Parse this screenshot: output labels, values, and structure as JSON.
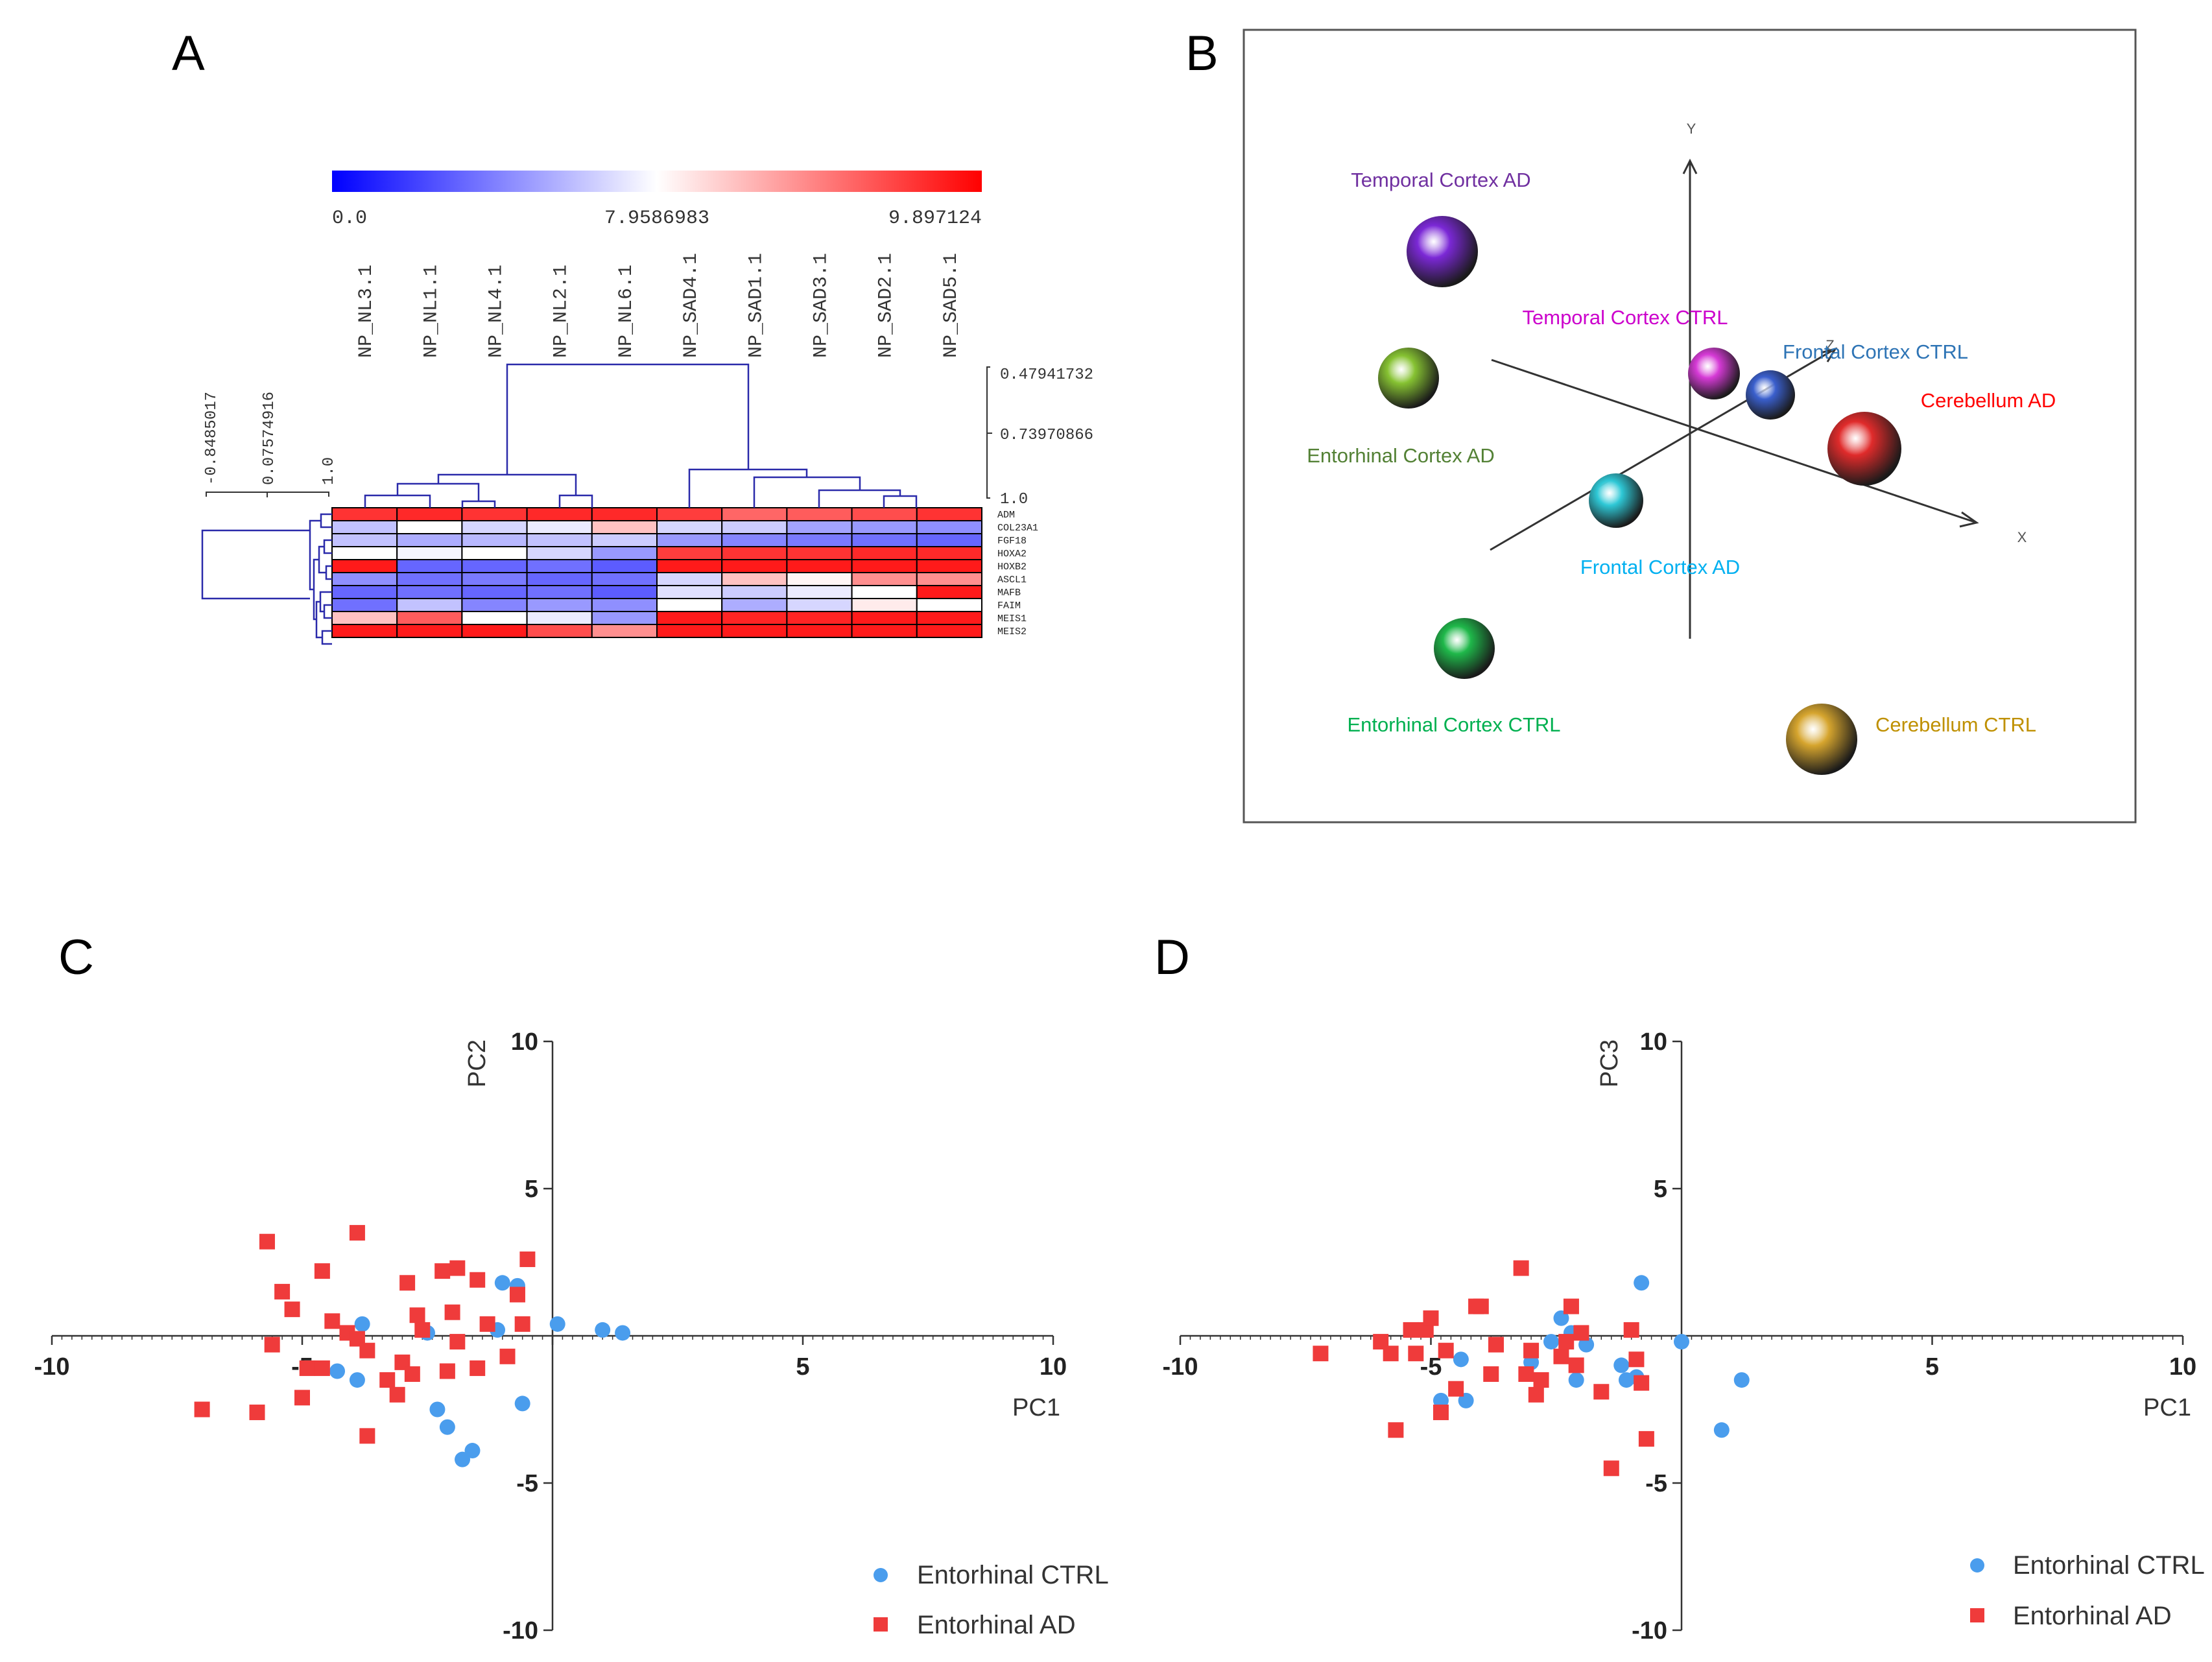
{
  "panel_labels": {
    "a": "A",
    "b": "B",
    "c": "C",
    "d": "D"
  },
  "chart_data": [
    {
      "panel": "A",
      "type": "heatmap",
      "title": "",
      "color_scale": {
        "colors": [
          "#0000ff",
          "#ffffff",
          "#ff0000"
        ],
        "min_label": "0.0",
        "mid_label": "7.9586983",
        "max_label": "9.897124"
      },
      "columns": [
        "NP_NL3.1",
        "NP_NL1.1",
        "NP_NL4.1",
        "NP_NL2.1",
        "NP_NL6.1",
        "NP_SAD4.1",
        "NP_SAD1.1",
        "NP_SAD3.1",
        "NP_SAD2.1",
        "NP_SAD5.1"
      ],
      "rows": [
        "ADM",
        "COL23A1",
        "FGF18",
        "HOXA2",
        "HOXB2",
        "ASCL1",
        "MAFB",
        "FAIM",
        "MEIS1",
        "MEIS2"
      ],
      "values": [
        [
          0.9,
          0.92,
          0.9,
          0.92,
          0.92,
          0.88,
          0.8,
          0.82,
          0.85,
          0.9
        ],
        [
          0.38,
          0.5,
          0.42,
          0.46,
          0.62,
          0.42,
          0.4,
          0.32,
          0.3,
          0.28
        ],
        [
          0.38,
          0.34,
          0.36,
          0.38,
          0.4,
          0.3,
          0.26,
          0.24,
          0.22,
          0.2
        ],
        [
          0.5,
          0.48,
          0.5,
          0.42,
          0.3,
          0.88,
          0.9,
          0.9,
          0.92,
          0.92
        ],
        [
          0.95,
          0.2,
          0.2,
          0.22,
          0.18,
          0.95,
          0.95,
          0.95,
          0.95,
          0.95
        ],
        [
          0.28,
          0.22,
          0.24,
          0.2,
          0.22,
          0.42,
          0.62,
          0.52,
          0.72,
          0.72
        ],
        [
          0.2,
          0.22,
          0.2,
          0.22,
          0.18,
          0.44,
          0.4,
          0.46,
          0.5,
          0.95
        ],
        [
          0.22,
          0.38,
          0.26,
          0.3,
          0.28,
          0.5,
          0.34,
          0.42,
          0.54,
          0.5
        ],
        [
          0.62,
          0.82,
          0.5,
          0.46,
          0.3,
          0.95,
          0.93,
          0.93,
          0.95,
          0.95
        ],
        [
          0.95,
          0.95,
          0.95,
          0.85,
          0.72,
          0.95,
          0.95,
          0.95,
          0.95,
          0.95
        ]
      ],
      "column_dendrogram_scale": [
        "0.47941732",
        "0.73970866",
        "1.0"
      ],
      "row_dendrogram_scale": [
        "-0.8485017",
        "0.07574916",
        "1.0"
      ]
    },
    {
      "panel": "B",
      "type": "scatter",
      "title": "",
      "axes": [
        "X",
        "Y",
        "Z"
      ],
      "groups": [
        {
          "name": "Temporal Cortex AD",
          "color": "#7b28d6",
          "label_color": "#7030a0"
        },
        {
          "name": "Entorhinal Cortex AD",
          "color": "#86c232",
          "label_color": "#538135"
        },
        {
          "name": "Temporal Cortex CTRL",
          "color": "#d63ad6",
          "label_color": "#cc00cc"
        },
        {
          "name": "Frontal Cortex CTRL",
          "color": "#3a5fcd",
          "label_color": "#2e74b5"
        },
        {
          "name": "Cerebellum AD",
          "color": "#e02b2b",
          "label_color": "#ff0000"
        },
        {
          "name": "Frontal Cortex AD",
          "color": "#2ec8d6",
          "label_color": "#00b0f0"
        },
        {
          "name": "Entorhinal Cortex CTRL",
          "color": "#1fb84a",
          "label_color": "#00b050"
        },
        {
          "name": "Cerebellum CTRL",
          "color": "#d6a52e",
          "label_color": "#bf9000"
        }
      ]
    },
    {
      "panel": "C",
      "type": "scatter",
      "title": "",
      "xlabel": "PC1",
      "ylabel": "PC2",
      "xlim": [
        -10,
        10
      ],
      "ylim": [
        -10,
        10
      ],
      "xticks": [
        "-10",
        "-5",
        "5",
        "10"
      ],
      "yticks": [
        "10",
        "5",
        "-5",
        "-10"
      ],
      "series": [
        {
          "name": "Entorhinal CTRL",
          "marker": "circle",
          "color": "#4a9ded",
          "points": [
            [
              -3.8,
              0.4
            ],
            [
              -4.3,
              -1.2
            ],
            [
              -3.9,
              -1.5
            ],
            [
              -2.5,
              0.1
            ],
            [
              -2.3,
              -2.5
            ],
            [
              -2.1,
              -3.1
            ],
            [
              -1.8,
              -4.2
            ],
            [
              -1.6,
              -3.9
            ],
            [
              -1.1,
              0.2
            ],
            [
              -1.0,
              1.8
            ],
            [
              -0.7,
              1.7
            ],
            [
              -0.6,
              -2.3
            ],
            [
              0.1,
              0.4
            ],
            [
              1.0,
              0.2
            ],
            [
              1.4,
              0.1
            ]
          ]
        },
        {
          "name": "Entorhinal AD",
          "marker": "square",
          "color": "#ef3b3b",
          "points": [
            [
              -7.0,
              -2.5
            ],
            [
              -5.9,
              -2.6
            ],
            [
              -5.7,
              3.2
            ],
            [
              -5.6,
              -0.3
            ],
            [
              -5.4,
              1.5
            ],
            [
              -5.2,
              0.9
            ],
            [
              -5.0,
              -2.1
            ],
            [
              -4.9,
              -1.1
            ],
            [
              -4.6,
              -1.1
            ],
            [
              -4.6,
              2.2
            ],
            [
              -4.4,
              0.5
            ],
            [
              -4.1,
              0.1
            ],
            [
              -3.9,
              -0.1
            ],
            [
              -3.9,
              3.5
            ],
            [
              -3.7,
              -0.5
            ],
            [
              -3.7,
              -3.4
            ],
            [
              -3.3,
              -1.5
            ],
            [
              -3.1,
              -2.0
            ],
            [
              -3.0,
              -0.9
            ],
            [
              -2.9,
              1.8
            ],
            [
              -2.8,
              -1.3
            ],
            [
              -2.7,
              0.7
            ],
            [
              -2.6,
              0.2
            ],
            [
              -2.2,
              2.2
            ],
            [
              -2.1,
              -1.2
            ],
            [
              -2.0,
              0.8
            ],
            [
              -1.9,
              2.3
            ],
            [
              -1.9,
              -0.2
            ],
            [
              -1.5,
              1.9
            ],
            [
              -1.5,
              -1.1
            ],
            [
              -1.3,
              0.4
            ],
            [
              -0.9,
              -0.7
            ],
            [
              -0.7,
              1.4
            ],
            [
              -0.6,
              0.4
            ],
            [
              -0.5,
              2.6
            ]
          ]
        }
      ]
    },
    {
      "panel": "D",
      "type": "scatter",
      "title": "",
      "xlabel": "PC1",
      "ylabel": "PC3",
      "xlim": [
        -10,
        10
      ],
      "ylim": [
        -10,
        10
      ],
      "xticks": [
        "-10",
        "-5",
        "5",
        "10"
      ],
      "yticks": [
        "10",
        "5",
        "-5",
        "-10"
      ],
      "series": [
        {
          "name": "Entorhinal CTRL",
          "marker": "circle",
          "color": "#4a9ded",
          "points": [
            [
              -4.8,
              -2.2
            ],
            [
              -4.4,
              -0.8
            ],
            [
              -4.3,
              -2.2
            ],
            [
              -3.0,
              -0.9
            ],
            [
              -2.6,
              -0.2
            ],
            [
              -2.4,
              0.6
            ],
            [
              -2.2,
              0.1
            ],
            [
              -2.1,
              -1.5
            ],
            [
              -1.9,
              -0.3
            ],
            [
              -1.2,
              -1.0
            ],
            [
              -1.1,
              -1.5
            ],
            [
              -0.9,
              -1.4
            ],
            [
              -0.8,
              1.8
            ],
            [
              0.0,
              -0.2
            ],
            [
              0.8,
              -3.2
            ],
            [
              1.2,
              -1.5
            ]
          ]
        },
        {
          "name": "Entorhinal AD",
          "marker": "square",
          "color": "#ef3b3b",
          "points": [
            [
              -7.2,
              -0.6
            ],
            [
              -6.0,
              -0.2
            ],
            [
              -5.8,
              -0.6
            ],
            [
              -5.7,
              -3.2
            ],
            [
              -5.4,
              0.2
            ],
            [
              -5.3,
              -0.6
            ],
            [
              -5.1,
              0.2
            ],
            [
              -5.0,
              0.6
            ],
            [
              -4.8,
              -2.6
            ],
            [
              -4.7,
              -0.5
            ],
            [
              -4.5,
              -1.8
            ],
            [
              -4.1,
              1.0
            ],
            [
              -4.0,
              1.0
            ],
            [
              -3.8,
              -1.3
            ],
            [
              -3.7,
              -0.3
            ],
            [
              -3.2,
              2.3
            ],
            [
              -3.1,
              -1.3
            ],
            [
              -3.0,
              -0.5
            ],
            [
              -2.9,
              -2.0
            ],
            [
              -2.8,
              -1.5
            ],
            [
              -2.4,
              -0.7
            ],
            [
              -2.3,
              -0.2
            ],
            [
              -2.2,
              1.0
            ],
            [
              -2.1,
              -1.0
            ],
            [
              -2.0,
              0.1
            ],
            [
              -1.6,
              -1.9
            ],
            [
              -1.4,
              -4.5
            ],
            [
              -1.0,
              0.2
            ],
            [
              -0.9,
              -0.8
            ],
            [
              -0.8,
              -1.6
            ],
            [
              -0.7,
              -3.5
            ]
          ]
        }
      ]
    }
  ]
}
